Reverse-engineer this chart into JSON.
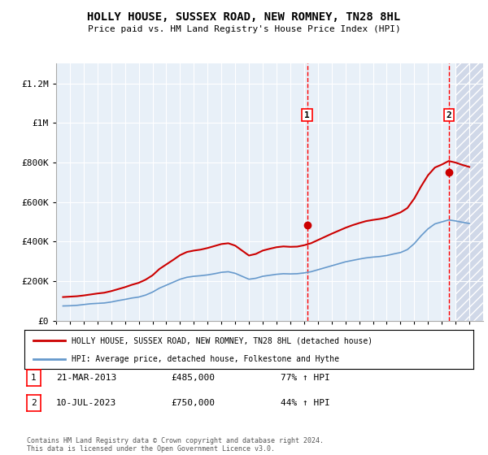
{
  "title": "HOLLY HOUSE, SUSSEX ROAD, NEW ROMNEY, TN28 8HL",
  "subtitle": "Price paid vs. HM Land Registry's House Price Index (HPI)",
  "background_color": "#ffffff",
  "plot_bg_color": "#e8f0f8",
  "hatch_bg_color": "#d0d8e8",
  "ylim": [
    0,
    1300000
  ],
  "yticks": [
    0,
    200000,
    400000,
    600000,
    800000,
    1000000,
    1200000
  ],
  "ytick_labels": [
    "£0",
    "£200K",
    "£400K",
    "£600K",
    "£800K",
    "£1M",
    "£1.2M"
  ],
  "year_start": 1995,
  "year_end": 2026,
  "transaction1": {
    "date": "21-MAR-2013",
    "value": 485000,
    "label": "1",
    "x": 2013.22
  },
  "transaction2": {
    "date": "10-JUL-2023",
    "value": 750000,
    "label": "2",
    "x": 2023.53
  },
  "legend_line1": "HOLLY HOUSE, SUSSEX ROAD, NEW ROMNEY, TN28 8HL (detached house)",
  "legend_line2": "HPI: Average price, detached house, Folkestone and Hythe",
  "footer": "Contains HM Land Registry data © Crown copyright and database right 2024.\nThis data is licensed under the Open Government Licence v3.0.",
  "table_row1": [
    "1",
    "21-MAR-2013",
    "£485,000",
    "77% ↑ HPI"
  ],
  "table_row2": [
    "2",
    "10-JUL-2023",
    "£750,000",
    "44% ↑ HPI"
  ],
  "red_line_color": "#cc0000",
  "blue_line_color": "#6699cc",
  "dot_color": "#cc0000",
  "hpi_data": {
    "years": [
      1995.5,
      1996.0,
      1996.5,
      1997.0,
      1997.5,
      1998.0,
      1998.5,
      1999.0,
      1999.5,
      2000.0,
      2000.5,
      2001.0,
      2001.5,
      2002.0,
      2002.5,
      2003.0,
      2003.5,
      2004.0,
      2004.5,
      2005.0,
      2005.5,
      2006.0,
      2006.5,
      2007.0,
      2007.5,
      2008.0,
      2008.5,
      2009.0,
      2009.5,
      2010.0,
      2010.5,
      2011.0,
      2011.5,
      2012.0,
      2012.5,
      2013.0,
      2013.5,
      2014.0,
      2014.5,
      2015.0,
      2015.5,
      2016.0,
      2016.5,
      2017.0,
      2017.5,
      2018.0,
      2018.5,
      2019.0,
      2019.5,
      2020.0,
      2020.5,
      2021.0,
      2021.5,
      2022.0,
      2022.5,
      2023.0,
      2023.5,
      2024.0,
      2024.5,
      2025.0
    ],
    "values": [
      75000,
      76000,
      78000,
      82000,
      86000,
      88000,
      90000,
      95000,
      102000,
      108000,
      115000,
      120000,
      130000,
      145000,
      165000,
      180000,
      195000,
      210000,
      220000,
      225000,
      228000,
      232000,
      238000,
      245000,
      248000,
      240000,
      225000,
      210000,
      215000,
      225000,
      230000,
      235000,
      238000,
      237000,
      238000,
      242000,
      248000,
      258000,
      268000,
      278000,
      288000,
      298000,
      305000,
      312000,
      318000,
      322000,
      325000,
      330000,
      338000,
      345000,
      360000,
      390000,
      430000,
      465000,
      490000,
      500000,
      510000,
      505000,
      498000,
      492000
    ]
  },
  "price_data": {
    "years": [
      1995.5,
      1996.0,
      1996.5,
      1997.0,
      1997.5,
      1998.0,
      1998.5,
      1999.0,
      1999.5,
      2000.0,
      2000.5,
      2001.0,
      2001.5,
      2002.0,
      2002.5,
      2003.0,
      2003.5,
      2004.0,
      2004.5,
      2005.0,
      2005.5,
      2006.0,
      2006.5,
      2007.0,
      2007.5,
      2008.0,
      2008.5,
      2009.0,
      2009.5,
      2010.0,
      2010.5,
      2011.0,
      2011.5,
      2012.0,
      2012.5,
      2013.0,
      2013.5,
      2014.0,
      2014.5,
      2015.0,
      2015.5,
      2016.0,
      2016.5,
      2017.0,
      2017.5,
      2018.0,
      2018.5,
      2019.0,
      2019.5,
      2020.0,
      2020.5,
      2021.0,
      2021.5,
      2022.0,
      2022.5,
      2023.0,
      2023.5,
      2024.0,
      2024.5,
      2025.0
    ],
    "values": [
      120000,
      122000,
      124000,
      128000,
      133000,
      138000,
      142000,
      150000,
      160000,
      170000,
      182000,
      192000,
      208000,
      230000,
      262000,
      285000,
      308000,
      332000,
      348000,
      355000,
      360000,
      368000,
      378000,
      388000,
      392000,
      380000,
      355000,
      330000,
      338000,
      355000,
      364000,
      372000,
      376000,
      374000,
      375000,
      382000,
      392000,
      408000,
      424000,
      440000,
      455000,
      470000,
      483000,
      494000,
      504000,
      510000,
      515000,
      522000,
      535000,
      548000,
      570000,
      618000,
      680000,
      736000,
      775000,
      790000,
      808000,
      800000,
      788000,
      778000
    ]
  }
}
